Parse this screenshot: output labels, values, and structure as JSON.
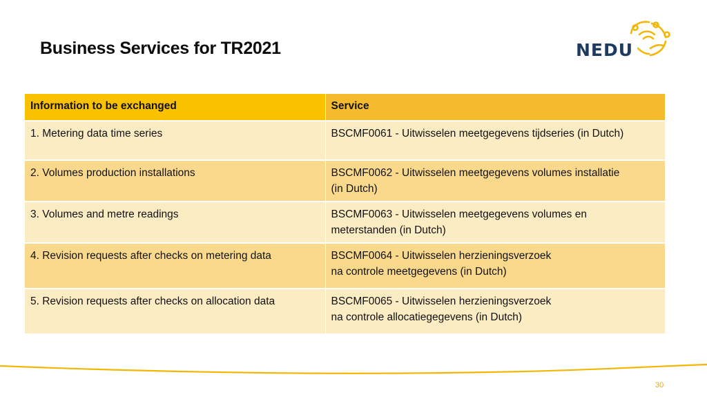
{
  "slide": {
    "title": "Business Services for TR2021",
    "page_number": "30"
  },
  "logo": {
    "text": "NEDU",
    "icon": "people-circle-logo-icon",
    "colors": {
      "text": "#1f3a5f",
      "mark": "#f2b705"
    }
  },
  "table": {
    "headers": [
      "Information to be exchanged",
      "Service"
    ],
    "rows": [
      {
        "info": "1. Metering data time series",
        "service_lines": [
          "BSCMF0061 - Uitwisselen meetgegevens tijdseries (in Dutch)"
        ]
      },
      {
        "info": "2. Volumes production installations",
        "service_lines": [
          "BSCMF0062 - Uitwisselen meetgegevens volumes installatie",
          "(in Dutch)"
        ]
      },
      {
        "info": "3. Volumes and metre readings",
        "service_lines": [
          "BSCMF0063 - Uitwisselen meetgegevens volumes en",
          "meterstanden (in Dutch)"
        ]
      },
      {
        "info": "4. Revision requests after checks on metering data",
        "service_lines": [
          "BSCMF0064 - Uitwisselen herzieningsverzoek",
          "na controle meetgegevens (in Dutch)"
        ]
      },
      {
        "info": "5. Revision requests after checks on allocation data",
        "service_lines": [
          "BSCMF0065 - Uitwisselen herzieningsverzoek",
          "na controle allocatiegegevens (in Dutch)"
        ]
      }
    ]
  },
  "colors": {
    "header_left": "#f9c100",
    "header_right": "#f5bb2e",
    "row_light": "#fcecc4",
    "row_dark": "#fad98d",
    "accent_line": "#f2b705"
  }
}
